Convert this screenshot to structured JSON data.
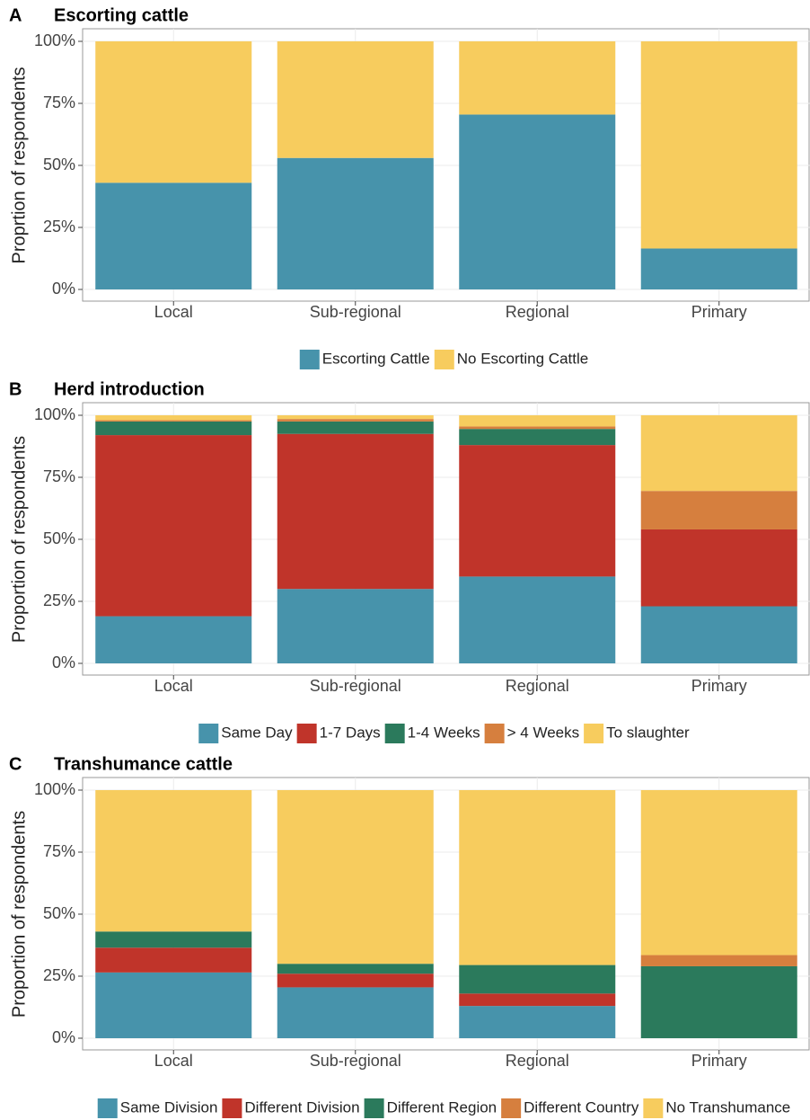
{
  "chart_data": [
    {
      "type": "stacked_bar",
      "panel": "A",
      "title": "Escorting cattle",
      "y_label": "Proprtion of respondents",
      "categories": [
        "Local",
        "Sub-regional",
        "Regional",
        "Primary"
      ],
      "series": [
        {
          "name": "Escorting Cattle",
          "color": "#4793ab",
          "values": [
            43,
            53,
            70.5,
            16.5
          ]
        },
        {
          "name": "No Escorting Cattle",
          "color": "#f7cc5e",
          "values": [
            57,
            47,
            29.5,
            83.5
          ]
        }
      ],
      "ylim": [
        0,
        100
      ],
      "yticks": [
        {
          "value": 0,
          "label": "0%"
        },
        {
          "value": 25,
          "label": "25%"
        },
        {
          "value": 50,
          "label": "50%"
        },
        {
          "value": 75,
          "label": "75%"
        },
        {
          "value": 100,
          "label": "100%"
        }
      ],
      "grid": true
    },
    {
      "type": "stacked_bar",
      "panel": "B",
      "title": "Herd introduction",
      "y_label": "Proportion of respondents",
      "categories": [
        "Local",
        "Sub-regional",
        "Regional",
        "Primary"
      ],
      "series": [
        {
          "name": "Same Day",
          "color": "#4793ab",
          "values": [
            19,
            30,
            35,
            23
          ]
        },
        {
          "name": "1-7 Days",
          "color": "#c0342a",
          "values": [
            73,
            62.5,
            53,
            31
          ]
        },
        {
          "name": "1-4 Weeks",
          "color": "#2b7a5c",
          "values": [
            5.5,
            5,
            6.5,
            0
          ]
        },
        {
          "name": "> 4 Weeks",
          "color": "#d67f3e",
          "values": [
            0.5,
            1,
            1,
            15.5
          ]
        },
        {
          "name": "To slaughter",
          "color": "#f7cc5e",
          "values": [
            2,
            1.5,
            4.5,
            30.5
          ]
        }
      ],
      "ylim": [
        0,
        100
      ],
      "yticks": [
        {
          "value": 0,
          "label": "0%"
        },
        {
          "value": 25,
          "label": "25%"
        },
        {
          "value": 50,
          "label": "50%"
        },
        {
          "value": 75,
          "label": "75%"
        },
        {
          "value": 100,
          "label": "100%"
        }
      ],
      "grid": true
    },
    {
      "type": "stacked_bar",
      "panel": "C",
      "title": "Transhumance cattle",
      "y_label": "Proportion of respondents",
      "categories": [
        "Local",
        "Sub-regional",
        "Regional",
        "Primary"
      ],
      "series": [
        {
          "name": "Same Division",
          "color": "#4793ab",
          "values": [
            26.5,
            20.5,
            13,
            0
          ]
        },
        {
          "name": "Different Division",
          "color": "#c0342a",
          "values": [
            10,
            5.5,
            5,
            0
          ]
        },
        {
          "name": "Different Region",
          "color": "#2b7a5c",
          "values": [
            6.5,
            4,
            11.5,
            29
          ]
        },
        {
          "name": "Different Country",
          "color": "#d67f3e",
          "values": [
            0,
            0,
            0,
            4.5
          ]
        },
        {
          "name": "No Transhumance",
          "color": "#f7cc5e",
          "values": [
            57,
            70,
            70.5,
            66.5
          ]
        }
      ],
      "ylim": [
        0,
        100
      ],
      "yticks": [
        {
          "value": 0,
          "label": "0%"
        },
        {
          "value": 25,
          "label": "25%"
        },
        {
          "value": 50,
          "label": "50%"
        },
        {
          "value": 75,
          "label": "75%"
        },
        {
          "value": 100,
          "label": "100%"
        }
      ],
      "grid": true
    }
  ]
}
